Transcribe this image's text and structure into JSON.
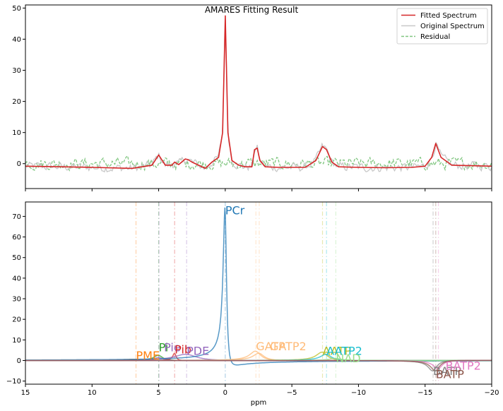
{
  "chart_data": [
    {
      "type": "line",
      "title": "AMARES Fitting Result",
      "xlabel": "",
      "ylabel": "",
      "xlim": [
        15,
        -20
      ],
      "ylim": [
        -8,
        51
      ],
      "xticks": [
        15,
        10,
        5,
        0,
        -5,
        -10,
        -15,
        -20
      ],
      "xticks_labeled": false,
      "yticks": [
        0,
        10,
        20,
        30,
        40,
        50
      ],
      "yticks_labels": [
        "0",
        "10",
        "20",
        "30",
        "40",
        "50"
      ],
      "legend_position": "top-right",
      "grid": false,
      "series": [
        {
          "name": "Fitted Spectrum",
          "color": "#d62728",
          "style": "solid",
          "x": [
            15,
            10,
            7,
            5.5,
            5,
            4.5,
            4,
            3.8,
            3.5,
            3,
            2.8,
            2.5,
            1.5,
            1,
            0.5,
            0.2,
            0,
            -0.2,
            -0.5,
            -1,
            -1.5,
            -2,
            -2.2,
            -2.4,
            -2.6,
            -3,
            -4,
            -5,
            -6,
            -6.8,
            -7.3,
            -7.6,
            -8,
            -8.5,
            -10,
            -12,
            -14,
            -15,
            -15.5,
            -15.8,
            -16.2,
            -17,
            -20
          ],
          "y": [
            -0.8,
            -1.2,
            -1.5,
            -0.5,
            2.8,
            -0.5,
            -0.5,
            0.5,
            -0.3,
            1.5,
            1.3,
            0.5,
            -1.5,
            0.5,
            2,
            10,
            47.5,
            10,
            1,
            -0.5,
            -1,
            -1,
            4.5,
            5,
            1,
            -1,
            -1.2,
            -1.2,
            -1.2,
            1,
            5.5,
            4.5,
            0.5,
            -1,
            -1.2,
            -1.3,
            -1.2,
            -0.8,
            2,
            6.5,
            2,
            -0.5,
            -0.8
          ]
        },
        {
          "name": "Original Spectrum",
          "color": "#c8c8c8",
          "style": "solid",
          "noise": 1.2,
          "x": [
            15,
            10,
            7,
            5.5,
            5,
            4.5,
            4,
            3.8,
            3.5,
            3,
            2.8,
            2.5,
            1.5,
            1,
            0.5,
            0.2,
            0,
            -0.2,
            -0.5,
            -1,
            -1.5,
            -2,
            -2.2,
            -2.4,
            -2.6,
            -3,
            -4,
            -5,
            -6,
            -6.8,
            -7.3,
            -7.6,
            -8,
            -8.5,
            -10,
            -12,
            -14,
            -15,
            -15.5,
            -15.8,
            -16.2,
            -17,
            -20
          ],
          "y": [
            -0.8,
            -1.2,
            -1.5,
            -0.5,
            2.8,
            -0.5,
            -0.5,
            0.5,
            -0.3,
            1.5,
            1.3,
            0.5,
            -1.5,
            0.5,
            2,
            10,
            47.5,
            10,
            1,
            -0.5,
            -1,
            -1,
            4.5,
            5,
            1,
            -1,
            -1.2,
            -1.2,
            -1.2,
            1,
            5.5,
            4.5,
            0.5,
            -1,
            -1.2,
            -1.3,
            -1.2,
            -0.8,
            2,
            6.5,
            2,
            -0.5,
            -0.8
          ]
        },
        {
          "name": "Residual",
          "color": "#2ca02c",
          "style": "dashed",
          "noise": 1.6,
          "x": [
            15,
            -20
          ],
          "y": [
            0,
            0
          ]
        }
      ]
    },
    {
      "type": "line",
      "title": "",
      "xlabel": "ppm",
      "ylabel": "",
      "xlim": [
        15,
        -20
      ],
      "ylim": [
        -11.5,
        77
      ],
      "xticks": [
        15,
        10,
        5,
        0,
        -5,
        -10,
        -15,
        -20
      ],
      "xticks_labels": [
        "15",
        "10",
        "5",
        "0",
        "−5",
        "−10",
        "−15",
        "−20"
      ],
      "yticks": [
        -10,
        0,
        10,
        20,
        30,
        40,
        50,
        60,
        70
      ],
      "yticks_labels": [
        "−10",
        "0",
        "10",
        "20",
        "30",
        "40",
        "50",
        "60",
        "70"
      ],
      "grid": false,
      "peaks": [
        {
          "name": "PME",
          "ppm": 6.7,
          "height": 0.6,
          "width": 1.0,
          "color": "#ff7f0e",
          "label_y": 0.5,
          "label_dx": 0
        },
        {
          "name": "Pi",
          "ppm": 5.0,
          "height": 2.5,
          "width": 0.4,
          "color": "#2ca02c",
          "label_y": 4.5,
          "label_dx": 0
        },
        {
          "name": "Pie",
          "ppm": 4.97,
          "height": 1.5,
          "width": 0.4,
          "color": "#9467bd",
          "label_y": 4.5,
          "label_dx": 7
        },
        {
          "name": "Pib",
          "ppm": 3.8,
          "height": 3.5,
          "width": 0.15,
          "color": "#d62728",
          "label_y": 3.5,
          "label_dx": 0
        },
        {
          "name": "PDE",
          "ppm": 2.9,
          "height": 3,
          "width": 1.0,
          "color": "#9467bd",
          "label_y": 2.8,
          "label_dx": 0
        },
        {
          "name": "PCr",
          "ppm": 0,
          "height": 72,
          "width": 0.15,
          "color": "#1f77b4",
          "label_y": 71,
          "label_dx": 0
        },
        {
          "name": "GATP",
          "ppm": -2.3,
          "height": 4.5,
          "width": 0.5,
          "color": "#ffbb78",
          "label_y": 5,
          "label_dx": 0
        },
        {
          "name": "GATP2",
          "ppm": -2.55,
          "height": 3.5,
          "width": 0.5,
          "color": "#ffbb78",
          "label_y": 5,
          "label_dx": 15
        },
        {
          "name": "AATP",
          "ppm": -7.3,
          "height": 4,
          "width": 0.5,
          "color": "#bcbd22",
          "label_y": 2.8,
          "label_dx": 0
        },
        {
          "name": "AATP2",
          "ppm": -7.6,
          "height": 3,
          "width": 0.5,
          "color": "#17becf",
          "label_y": 2.8,
          "label_dx": 0
        },
        {
          "name": "NAD",
          "ppm": -8.3,
          "height": 1,
          "width": 0.6,
          "color": "#98df8a",
          "label_y": -0.8,
          "label_dx": 0
        },
        {
          "name": "BATP",
          "ppm": -15.6,
          "height": -5,
          "width": 0.4,
          "color": "#7f7f7f",
          "label_y": -7,
          "label_dx": 0
        },
        {
          "name": "BATP2",
          "ppm": -16.0,
          "height": -4,
          "width": 0.4,
          "color": "#e377c2",
          "label_y": -4.5,
          "label_dx": 10
        },
        {
          "name": "BATP",
          "ppm": -15.8,
          "height": -5,
          "width": 0.4,
          "color": "#8c564b",
          "label_y": -8.5,
          "label_dx": 0
        }
      ]
    }
  ]
}
